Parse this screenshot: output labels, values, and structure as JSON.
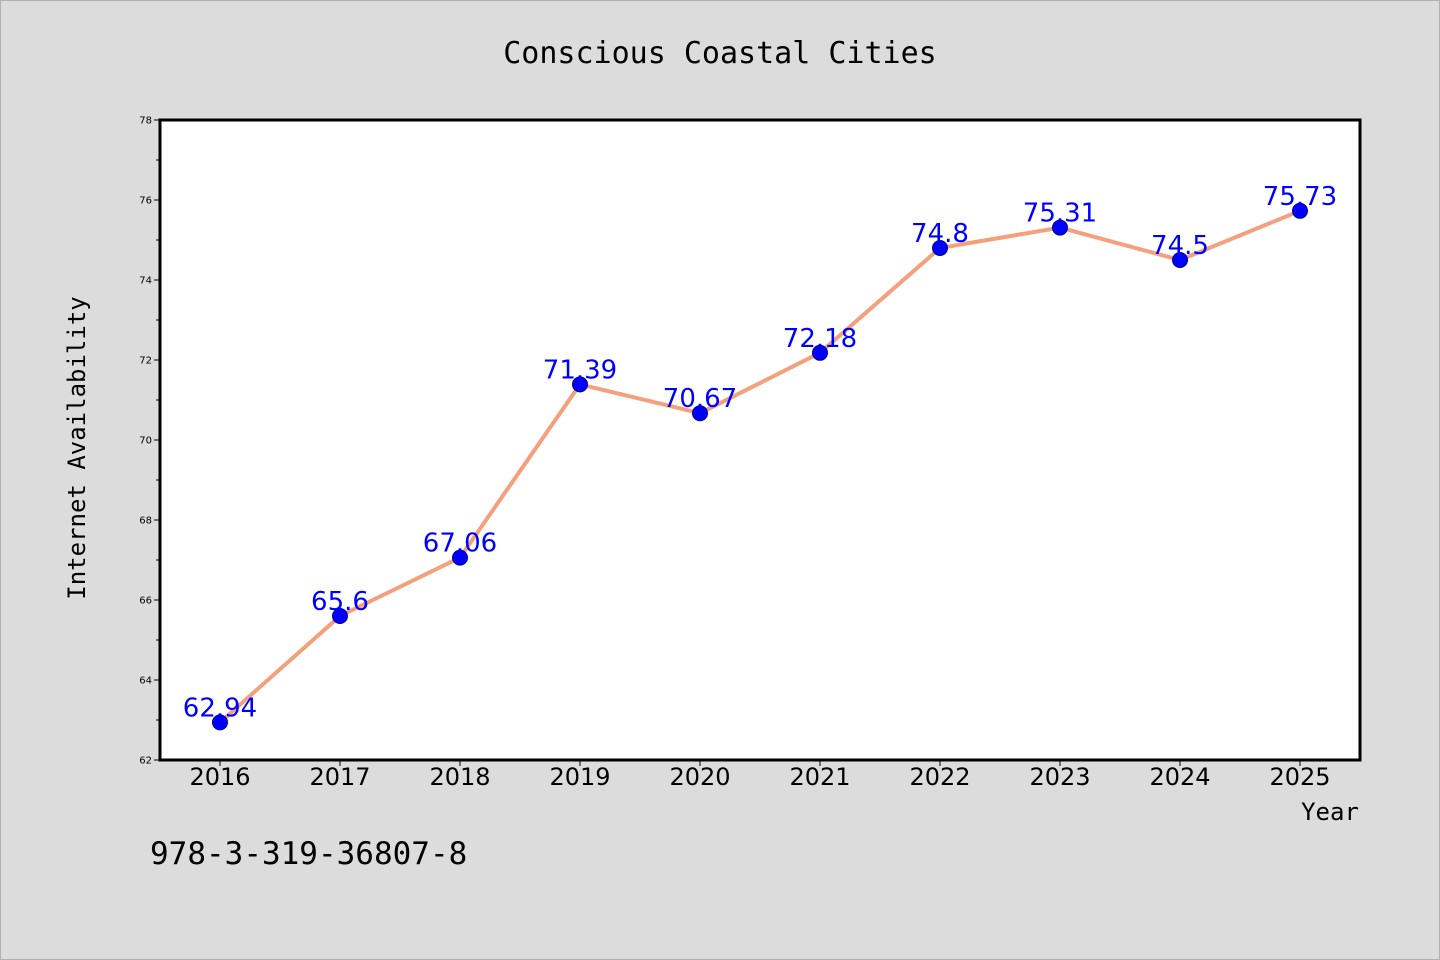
{
  "chart_data": {
    "type": "line",
    "title": "Conscious Coastal Cities",
    "xlabel": "Year",
    "ylabel": "Internet Availability",
    "categories": [
      "2016",
      "2017",
      "2018",
      "2019",
      "2020",
      "2021",
      "2022",
      "2023",
      "2024",
      "2025"
    ],
    "series": [
      {
        "values": [
          62.94,
          65.6,
          67.06,
          71.39,
          70.67,
          72.18,
          74.8,
          75.31,
          74.5,
          75.73
        ]
      }
    ],
    "ylim": [
      62,
      78
    ],
    "yticks": [
      62,
      64,
      66,
      68,
      70,
      72,
      74,
      76,
      78
    ],
    "grid": false,
    "line_color": "#f4a07c",
    "marker_color": "#0000ff",
    "label_color": "#0000ff"
  },
  "footer_text": "978-3-319-36807-8"
}
